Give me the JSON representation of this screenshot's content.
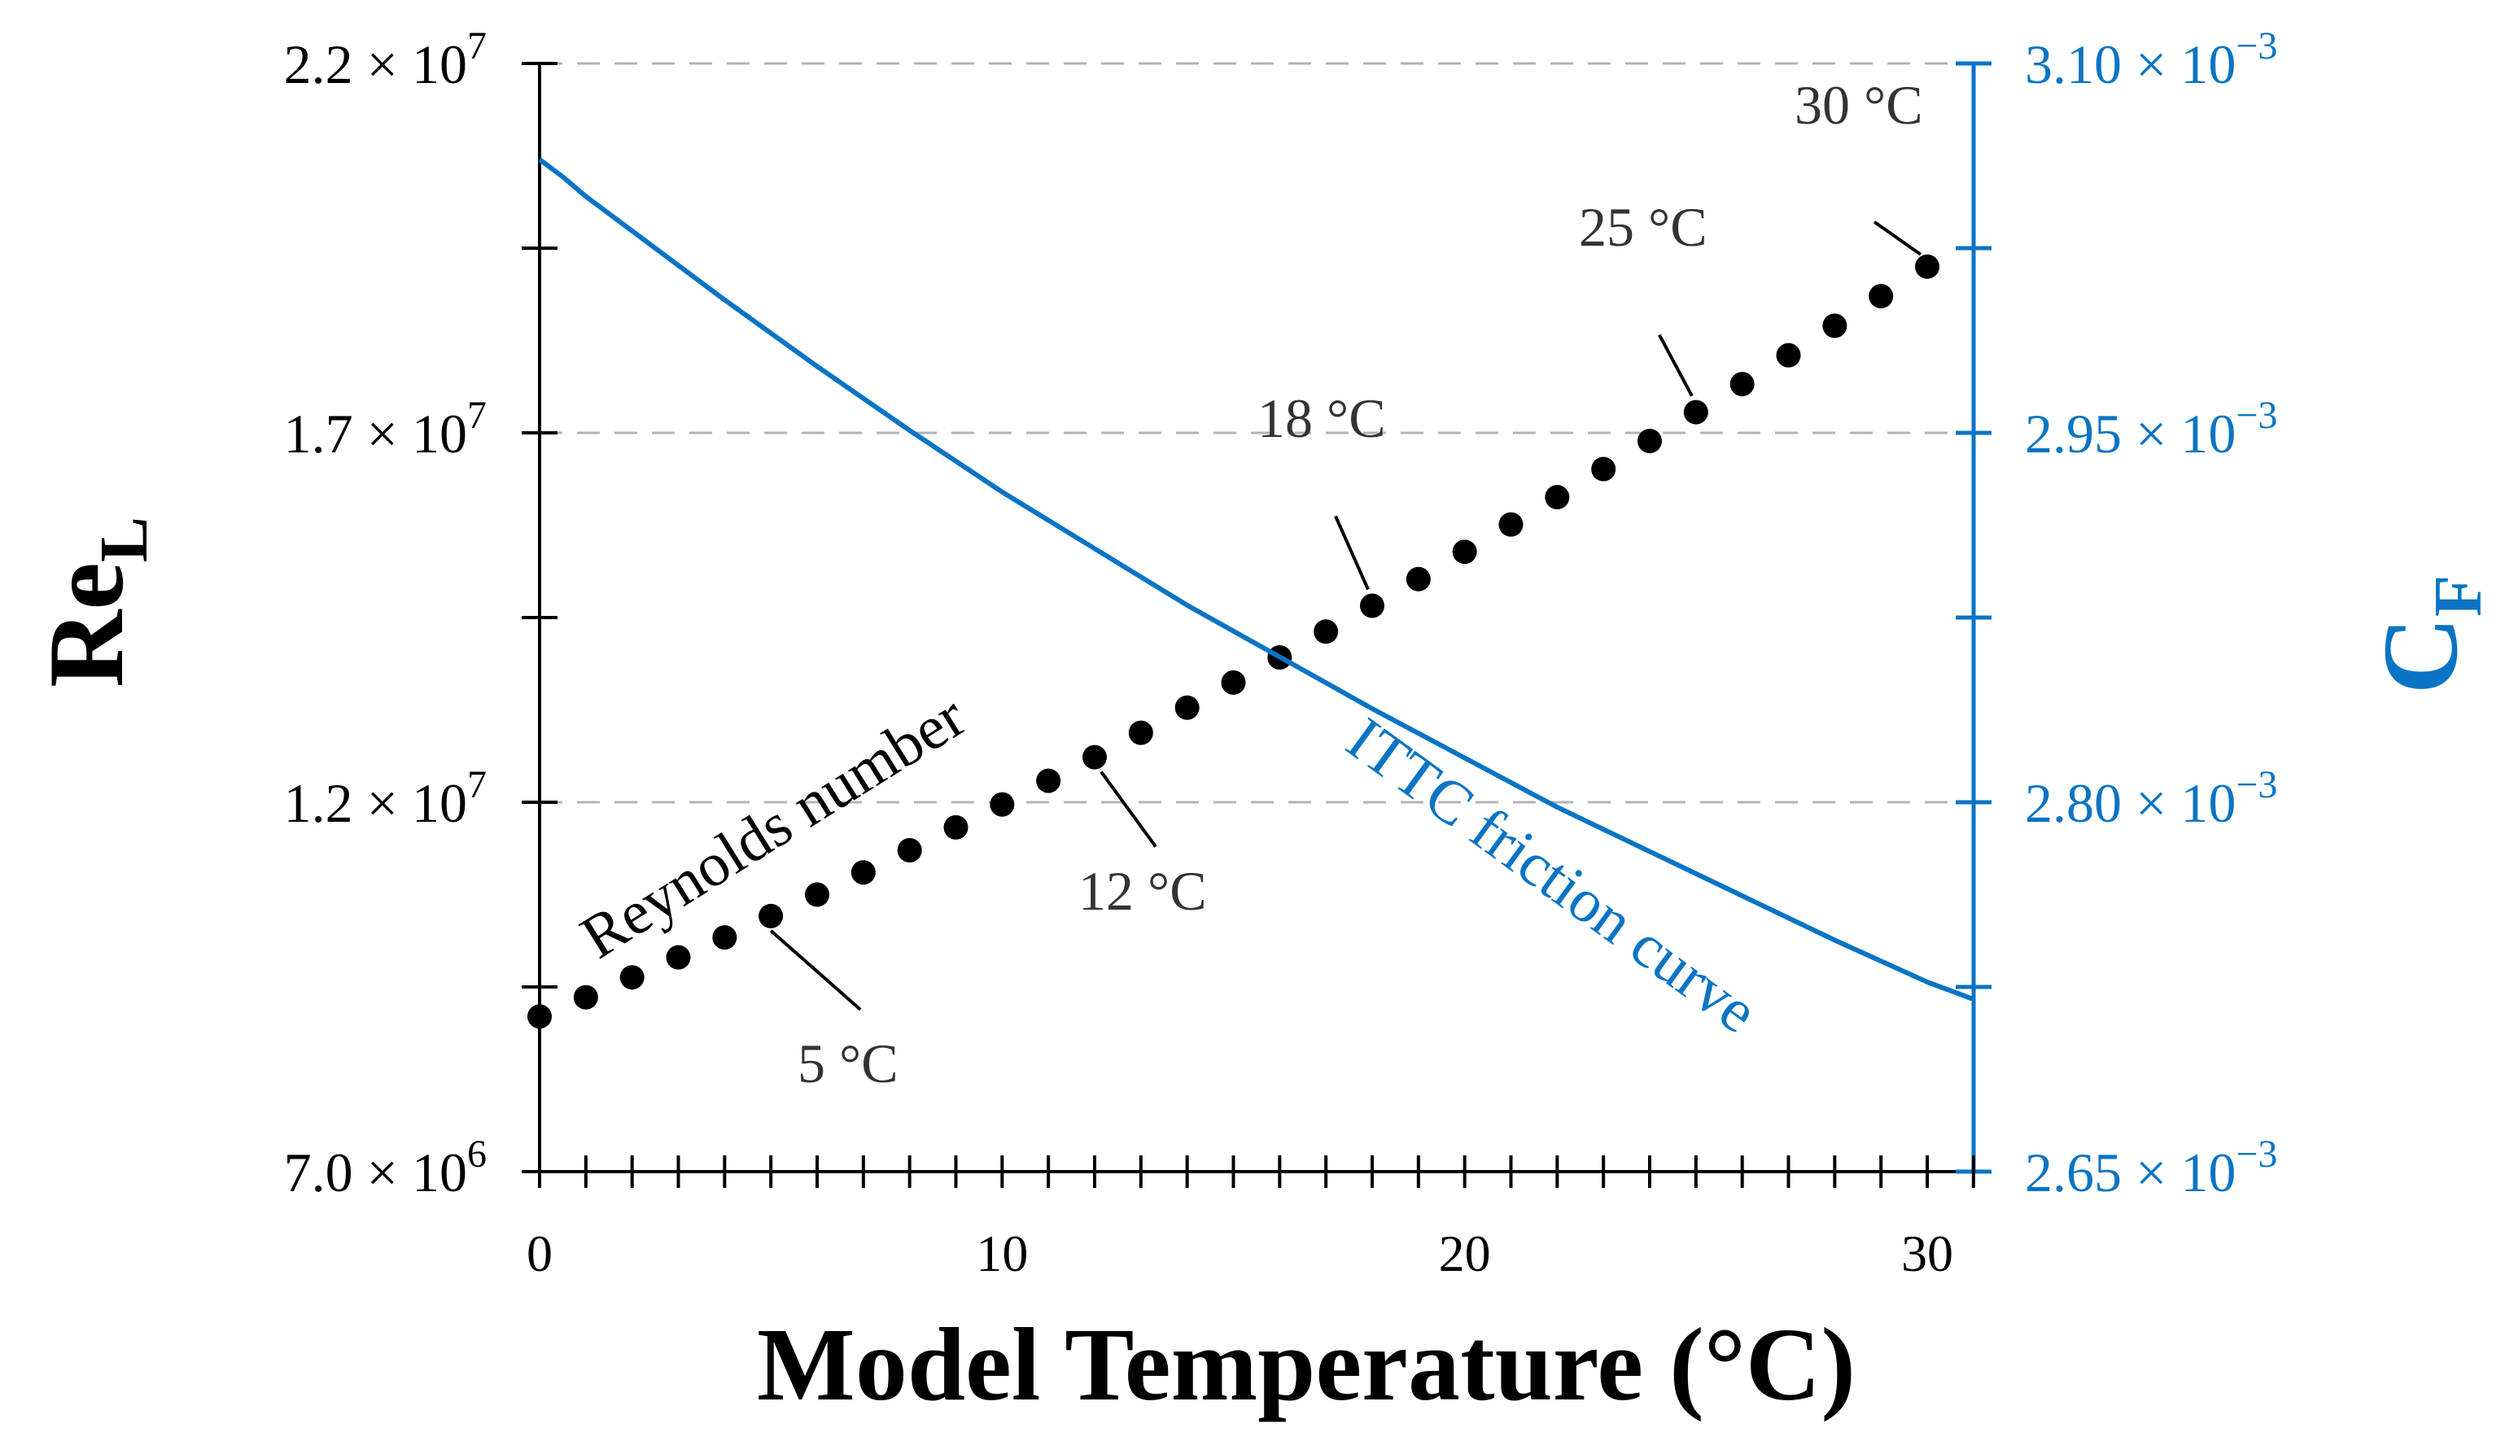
{
  "chart_data": {
    "type": "line",
    "xlabel": "Model Temperature (°C)",
    "x_range": [
      0,
      31
    ],
    "x_ticks": [
      "0",
      "10",
      "20",
      "30"
    ],
    "grid": "horizontal dashed at labeled left ticks",
    "axes": {
      "left": {
        "label_main": "Re",
        "label_sub": "L",
        "range": [
          7000000,
          22000000
        ],
        "ticks": [
          {
            "value": 7000000,
            "mantissa": "7.0",
            "exponent": "6"
          },
          {
            "value": 12000000,
            "mantissa": "1.2",
            "exponent": "7"
          },
          {
            "value": 17000000,
            "mantissa": "1.7",
            "exponent": "7"
          },
          {
            "value": 22000000,
            "mantissa": "2.2",
            "exponent": "7"
          }
        ],
        "color": "#000000"
      },
      "right": {
        "label_main": "C",
        "label_sub": "F",
        "range": [
          0.00265,
          0.0031
        ],
        "ticks": [
          {
            "value": 0.00265,
            "mantissa": "2.65",
            "exponent": "−3"
          },
          {
            "value": 0.0028,
            "mantissa": "2.80",
            "exponent": "−3"
          },
          {
            "value": 0.00295,
            "mantissa": "2.95",
            "exponent": "−3"
          },
          {
            "value": 0.0031,
            "mantissa": "3.10",
            "exponent": "−3"
          }
        ],
        "color": "#0a74c4"
      }
    },
    "series": [
      {
        "name": "Reynolds number",
        "axis": "left",
        "style": "dots",
        "color": "#000000",
        "x": [
          0,
          1,
          2,
          3,
          4,
          5,
          6,
          7,
          8,
          9,
          10,
          11,
          12,
          13,
          14,
          15,
          16,
          17,
          18,
          19,
          20,
          21,
          22,
          23,
          24,
          25,
          26,
          27,
          28,
          29,
          30
        ],
        "y": [
          9100000,
          9360000,
          9630000,
          9900000,
          10170000,
          10460000,
          10750000,
          11050000,
          11350000,
          11660000,
          11970000,
          12290000,
          12610000,
          12940000,
          13280000,
          13620000,
          13960000,
          14310000,
          14660000,
          15020000,
          15390000,
          15760000,
          16130000,
          16510000,
          16890000,
          17280000,
          17660000,
          18050000,
          18450000,
          18850000,
          19250000
        ]
      },
      {
        "name": "ITTC friction curve",
        "axis": "right",
        "style": "line",
        "color": "#0a74c4",
        "x": [
          0,
          0.5,
          1,
          2,
          4,
          6,
          8,
          10,
          12,
          14,
          16,
          18,
          20,
          22,
          24,
          26,
          28,
          30,
          31
        ],
        "y": [
          0.003061,
          0.003054,
          0.003046,
          0.003032,
          0.003004,
          0.002977,
          0.002951,
          0.002926,
          0.002903,
          0.00288,
          0.002859,
          0.002838,
          0.002818,
          0.002798,
          0.00278,
          0.002762,
          0.002744,
          0.002727,
          0.00272
        ]
      }
    ],
    "annotations": [
      {
        "text": "5 °C",
        "x": 5
      },
      {
        "text": "12 °C",
        "x": 12
      },
      {
        "text": "18 °C",
        "x": 18
      },
      {
        "text": "25 °C",
        "x": 25
      },
      {
        "text": "30 °C",
        "x": 30
      }
    ]
  }
}
